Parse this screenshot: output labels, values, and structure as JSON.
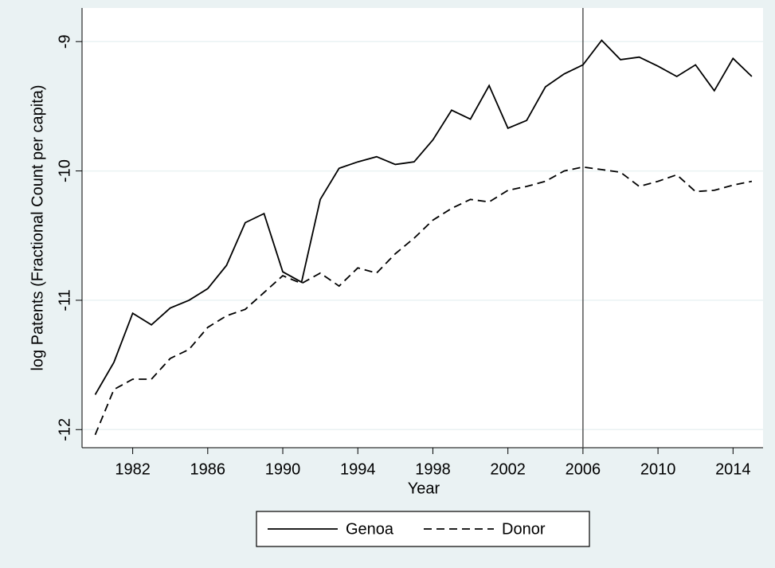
{
  "chart_data": {
    "type": "line",
    "x_label": "Year",
    "y_label": "log Patents (Fractional Count per capita)",
    "x": [
      1980,
      1981,
      1982,
      1983,
      1984,
      1985,
      1986,
      1987,
      1988,
      1989,
      1990,
      1991,
      1992,
      1993,
      1994,
      1995,
      1996,
      1997,
      1998,
      1999,
      2000,
      2001,
      2002,
      2003,
      2004,
      2005,
      2006,
      2007,
      2008,
      2009,
      2010,
      2011,
      2012,
      2013,
      2014,
      2015
    ],
    "series": [
      {
        "name": "Genoa",
        "color": "#000000",
        "style": "solid",
        "values": [
          -11.73,
          -11.48,
          -11.1,
          -11.19,
          -11.06,
          -11.0,
          -10.91,
          -10.73,
          -10.4,
          -10.33,
          -10.78,
          -10.86,
          -10.22,
          -9.98,
          -9.93,
          -9.89,
          -9.95,
          -9.93,
          -9.76,
          -9.53,
          -9.6,
          -9.34,
          -9.67,
          -9.61,
          -9.35,
          -9.25,
          -9.18,
          -8.99,
          -9.14,
          -9.12,
          -9.19,
          -9.27,
          -9.18,
          -9.38,
          -9.13,
          -9.27
        ]
      },
      {
        "name": "Donor",
        "color": "#000000",
        "style": "dashed",
        "values": [
          -12.04,
          -11.69,
          -11.61,
          -11.61,
          -11.45,
          -11.38,
          -11.21,
          -11.12,
          -11.07,
          -10.94,
          -10.81,
          -10.87,
          -10.79,
          -10.89,
          -10.75,
          -10.79,
          -10.64,
          -10.52,
          -10.38,
          -10.29,
          -10.22,
          -10.24,
          -10.15,
          -10.12,
          -10.08,
          -10.0,
          -9.97,
          -9.99,
          -10.01,
          -10.12,
          -10.08,
          -10.03,
          -10.16,
          -10.15,
          -10.11,
          -10.08
        ]
      }
    ],
    "xlim": [
      1979.3,
      2015.6
    ],
    "xticks": [
      1982,
      1986,
      1990,
      1994,
      1998,
      2002,
      2006,
      2010,
      2014
    ],
    "ylim": [
      -12.14,
      -8.74
    ],
    "yticks": [
      -9,
      -10,
      -11,
      -12
    ],
    "vline": 2006,
    "grid": true,
    "legend": "bottom"
  }
}
